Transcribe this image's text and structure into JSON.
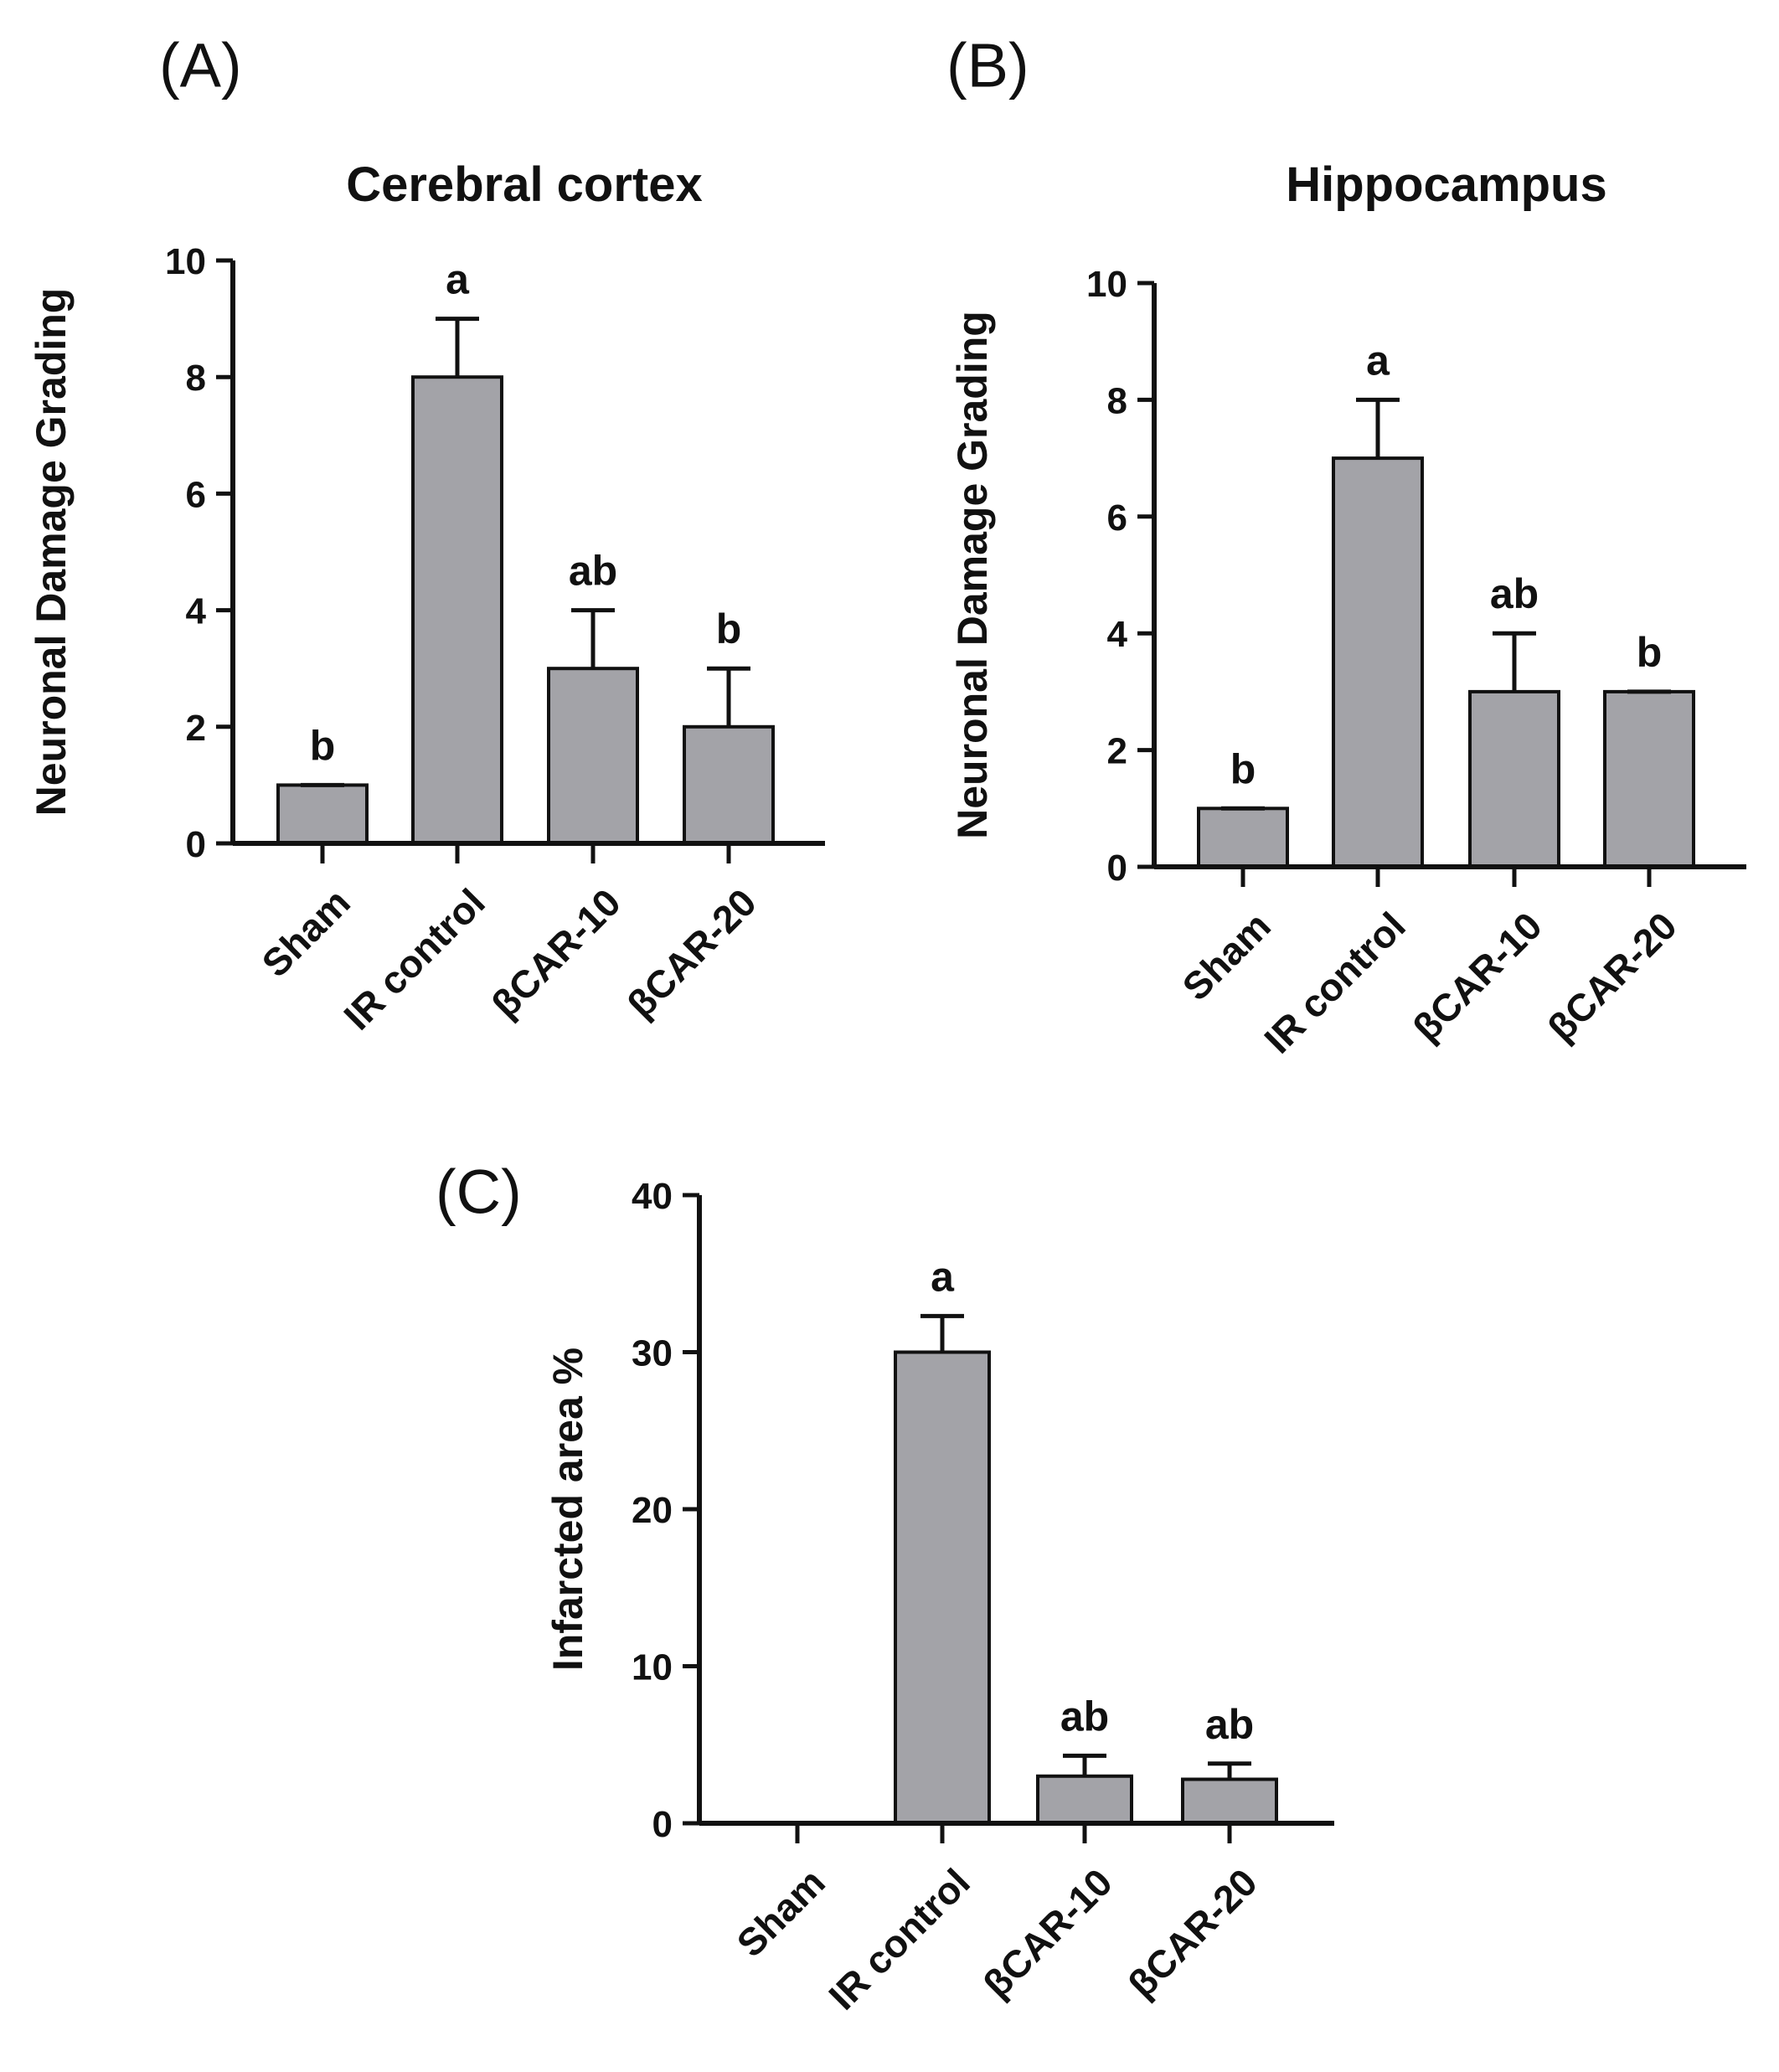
{
  "chart_data": [
    {
      "panel": "(A)",
      "type": "bar",
      "title": "Cerebral cortex",
      "xlabel": "",
      "ylabel": "Neuronal Damage Grading",
      "categories": [
        "Sham",
        "IR control",
        "βCAR-10",
        "βCAR-20"
      ],
      "values": [
        1,
        8,
        3,
        2
      ],
      "errors": [
        0,
        1,
        1,
        1
      ],
      "annotations": [
        "b",
        "a",
        "ab",
        "b"
      ],
      "ylim": [
        0,
        10
      ],
      "yticks": [
        0,
        2,
        4,
        6,
        8,
        10
      ],
      "ytick_labels": [
        "0",
        "2",
        "4",
        "6",
        "8",
        "10"
      ]
    },
    {
      "panel": "(B)",
      "type": "bar",
      "title": "Hippocampus",
      "xlabel": "",
      "ylabel": "Neuronal Damage Grading",
      "categories": [
        "Sham",
        "IR control",
        "βCAR-10",
        "βCAR-20"
      ],
      "values": [
        1,
        7,
        3,
        3
      ],
      "errors": [
        0,
        1,
        1,
        0
      ],
      "annotations": [
        "b",
        "a",
        "ab",
        "b"
      ],
      "ylim": [
        0,
        10
      ],
      "yticks": [
        0,
        2,
        4,
        6,
        8,
        10
      ],
      "ytick_labels": [
        "0",
        "2",
        "4",
        "6",
        "8",
        "10"
      ]
    },
    {
      "panel": "(C)",
      "type": "bar",
      "title": "",
      "xlabel": "",
      "ylabel": "Infarcted area %",
      "categories": [
        "Sham",
        "IR control",
        "βCAR-10",
        "βCAR-20"
      ],
      "values": [
        0,
        30,
        3,
        2.8
      ],
      "errors": [
        0,
        2.3,
        1.3,
        1.0
      ],
      "annotations": [
        "",
        "a",
        "ab",
        "ab"
      ],
      "ylim": [
        0,
        40
      ],
      "yticks": [
        0,
        10,
        20,
        30,
        40
      ],
      "ytick_labels": [
        "0",
        "10",
        "20",
        "30",
        "40"
      ]
    }
  ]
}
